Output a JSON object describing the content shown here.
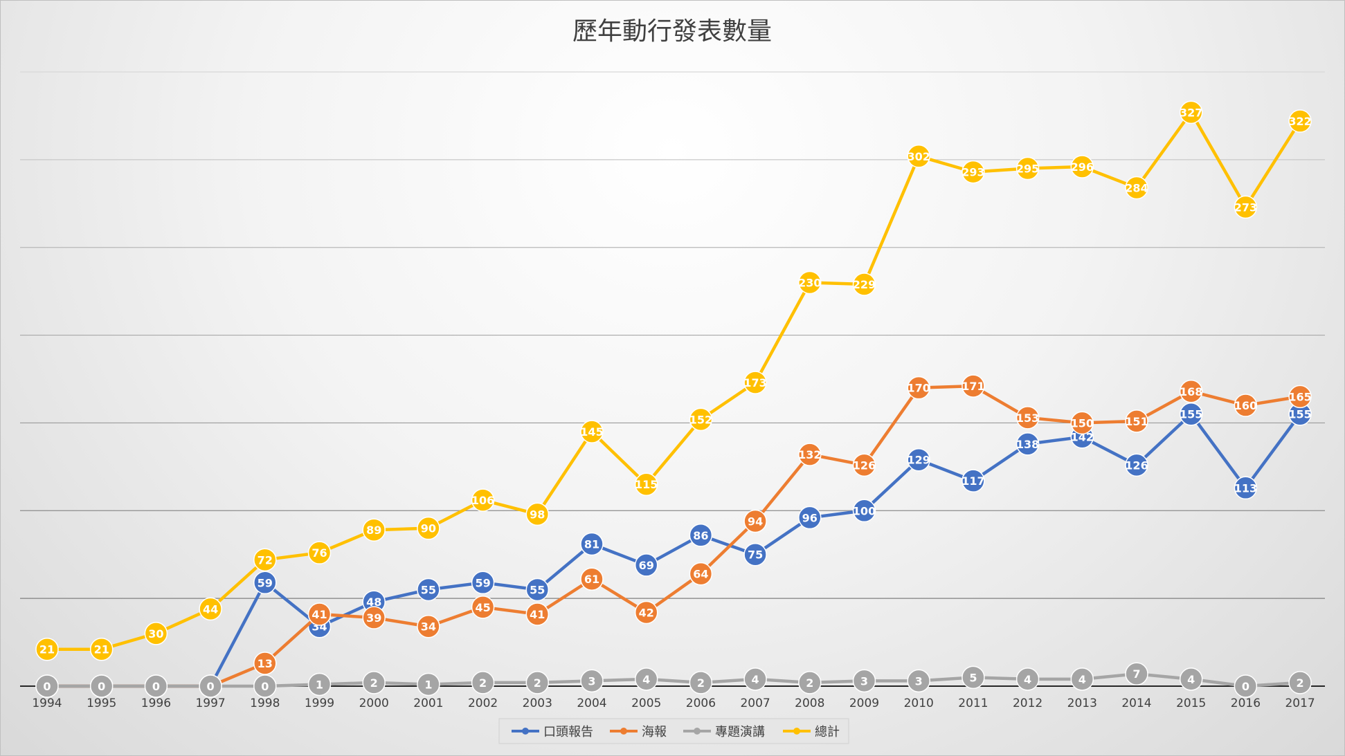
{
  "chart_data": {
    "type": "line",
    "title": "歷年動行發表數量",
    "xlabel": "",
    "ylabel": "",
    "ylim": [
      0,
      350
    ],
    "grid": true,
    "legend_position": "bottom",
    "categories": [
      "1994",
      "1995",
      "1996",
      "1997",
      "1998",
      "1999",
      "2000",
      "2001",
      "2002",
      "2003",
      "2004",
      "2005",
      "2006",
      "2007",
      "2008",
      "2009",
      "2010",
      "2011",
      "2012",
      "2013",
      "2014",
      "2015",
      "2016",
      "2017"
    ],
    "series": [
      {
        "name": "口頭報告",
        "color": "#4472C4",
        "values": [
          0,
          0,
          0,
          0,
          59,
          34,
          48,
          55,
          59,
          55,
          81,
          69,
          86,
          75,
          96,
          100,
          129,
          117,
          138,
          142,
          126,
          155,
          113,
          155
        ]
      },
      {
        "name": "海報",
        "color": "#ED7D31",
        "values": [
          0,
          0,
          0,
          0,
          13,
          41,
          39,
          34,
          45,
          41,
          61,
          42,
          64,
          94,
          132,
          126,
          170,
          171,
          153,
          150,
          151,
          168,
          160,
          165
        ]
      },
      {
        "name": "專題演講",
        "color": "#A5A5A5",
        "values": [
          0,
          0,
          0,
          0,
          0,
          1,
          2,
          1,
          2,
          2,
          3,
          4,
          2,
          4,
          2,
          3,
          3,
          5,
          4,
          4,
          7,
          4,
          0,
          2
        ]
      },
      {
        "name": "總計",
        "color": "#FFC000",
        "values": [
          21,
          21,
          30,
          44,
          72,
          76,
          89,
          90,
          106,
          98,
          145,
          115,
          152,
          173,
          230,
          229,
          302,
          293,
          295,
          296,
          284,
          327,
          273,
          322
        ]
      }
    ]
  }
}
